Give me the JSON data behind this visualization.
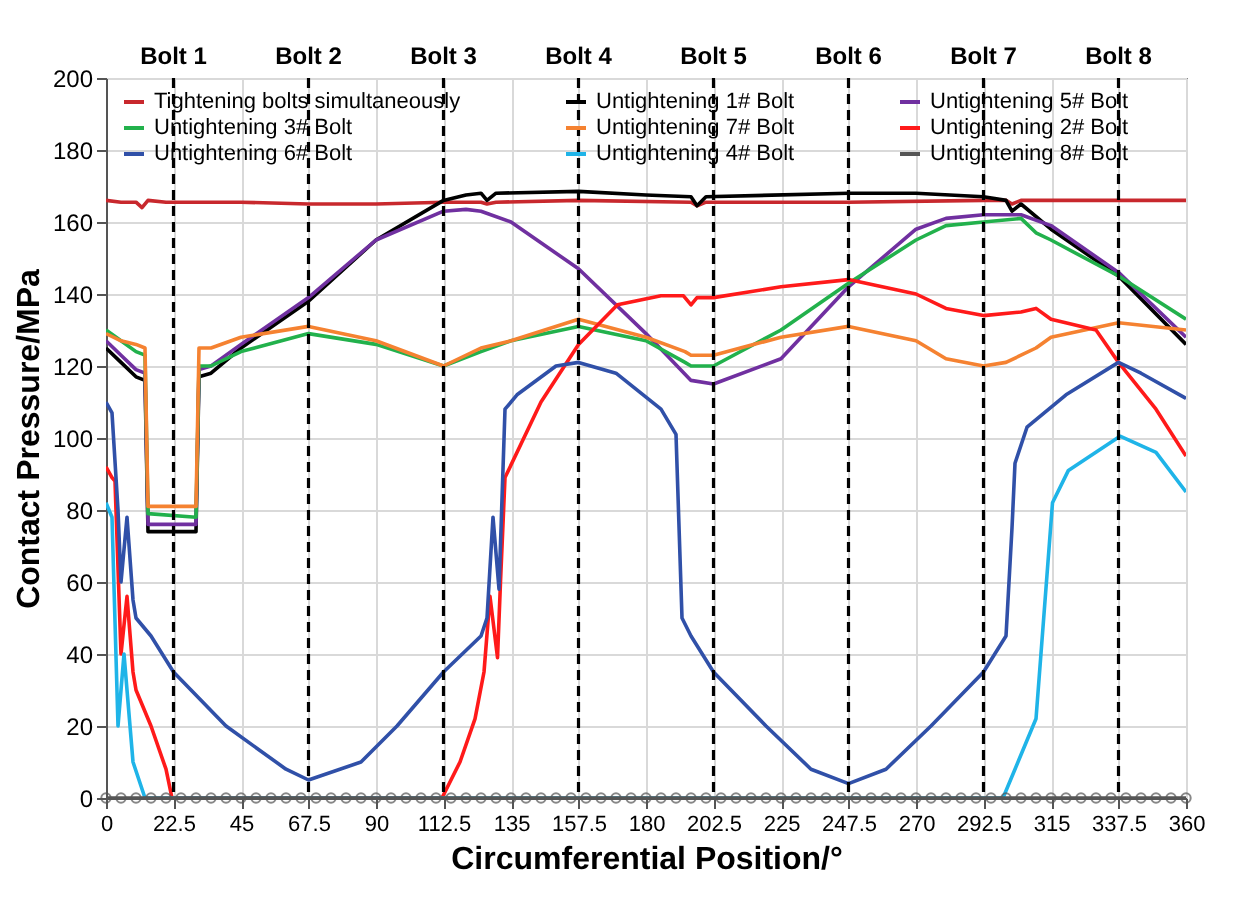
{
  "chart_data": {
    "type": "line",
    "xlabel": "Circumferential Position/°",
    "ylabel": "Contact Pressure/MPa",
    "xlim": [
      0,
      360
    ],
    "xticks": [
      0,
      22.5,
      45,
      67.5,
      90,
      112.5,
      135,
      157.5,
      180,
      202.5,
      225,
      247.5,
      270,
      292.5,
      315,
      337.5,
      360
    ],
    "ylim": [
      0,
      200
    ],
    "yticks": [
      0,
      20,
      40,
      60,
      80,
      100,
      120,
      140,
      160,
      180,
      200
    ],
    "grid": true,
    "legend": "top",
    "line_style": "solid",
    "series": [
      {
        "name": "Tightening bolts simultaneously",
        "color": "#c8282d",
        "x": [
          0,
          5,
          10,
          12,
          14,
          20,
          45,
          67.5,
          90,
          112.5,
          125,
          127,
          130,
          157.5,
          195,
          197,
          200,
          247.5,
          292.5,
          300,
          302,
          305,
          337.5,
          360
        ],
        "values": [
          166,
          165.5,
          165.5,
          164,
          166,
          165.5,
          165.5,
          165,
          165,
          165.5,
          165.5,
          165,
          165.5,
          166,
          165.5,
          164.5,
          165.5,
          165.5,
          166,
          166,
          165,
          166,
          166,
          166
        ]
      },
      {
        "name": "Untightening 1# Bolt",
        "color": "#000000",
        "x": [
          0,
          5,
          10,
          13,
          14,
          30,
          31,
          35,
          45,
          67.5,
          90,
          112.5,
          120,
          125,
          127,
          130,
          157.5,
          180,
          195,
          197,
          200,
          247.5,
          270,
          292.5,
          300,
          302,
          305,
          315,
          337.5,
          360
        ],
        "values": [
          125,
          121,
          117,
          116,
          74,
          74,
          117,
          118,
          125,
          138,
          155,
          166,
          167.5,
          168,
          166,
          168,
          168.5,
          167.5,
          167,
          164.5,
          167,
          168,
          168,
          167,
          166,
          163,
          165,
          158,
          145,
          126
        ]
      },
      {
        "name": "Untightening 5# Bolt",
        "color": "#7030a0",
        "x": [
          0,
          5,
          10,
          13,
          14,
          30,
          31,
          35,
          45,
          67.5,
          90,
          112.5,
          120,
          125,
          135,
          157.5,
          180,
          195,
          202.5,
          225,
          247.5,
          270,
          280,
          292.5,
          305,
          315,
          337.5,
          360
        ],
        "values": [
          127,
          123,
          119,
          118,
          76,
          76,
          119,
          120,
          126,
          139,
          155,
          163,
          163.5,
          163,
          160,
          147,
          129,
          116,
          115,
          122,
          142,
          158,
          161,
          162,
          162,
          159,
          146,
          128
        ]
      },
      {
        "name": "Untightening 3# Bolt",
        "color": "#22b14c",
        "x": [
          0,
          5,
          10,
          13,
          14,
          30,
          31,
          35,
          45,
          67.5,
          90,
          112.5,
          125,
          135,
          157.5,
          180,
          193,
          195,
          202.5,
          225,
          247.5,
          270,
          280,
          292.5,
          305,
          310,
          315,
          337.5,
          360
        ],
        "values": [
          130,
          127,
          124,
          123,
          79,
          78,
          120,
          120,
          124,
          129,
          126,
          120,
          124,
          127,
          131,
          127,
          121,
          120,
          120,
          130,
          143,
          155,
          159,
          160,
          161,
          157,
          155,
          145,
          133
        ]
      },
      {
        "name": "Untightening 7# Bolt",
        "color": "#f58231",
        "x": [
          0,
          5,
          10,
          13,
          14,
          30,
          31,
          35,
          45,
          67.5,
          90,
          112.5,
          125,
          135,
          157.5,
          180,
          193,
          195,
          202.5,
          225,
          247.5,
          270,
          280,
          292.5,
          300,
          310,
          315,
          337.5,
          360
        ],
        "values": [
          129,
          127,
          126,
          125,
          81,
          81,
          125,
          125,
          128,
          131,
          127,
          120,
          125,
          127,
          133,
          128,
          124,
          123,
          123,
          128,
          131,
          127,
          122,
          120,
          121,
          125,
          128,
          132,
          130
        ]
      },
      {
        "name": "Untightening 2# Bolt",
        "color": "#ff1a1a",
        "x": [
          0,
          2,
          3,
          5,
          7,
          9,
          10,
          15,
          20,
          22,
          40,
          67.5,
          90,
          112,
          118,
          123,
          126,
          128,
          130.5,
          131.5,
          133,
          145,
          157.5,
          170.5,
          185,
          192.5,
          195,
          197,
          202.5,
          225,
          247.5,
          270,
          280,
          292.5,
          305,
          310,
          315,
          330,
          337.5,
          350,
          360
        ],
        "values": [
          92,
          89,
          88,
          40,
          56,
          35,
          30,
          20,
          8,
          0,
          0,
          0,
          0,
          0,
          10,
          22,
          35,
          56,
          39,
          60,
          89,
          110,
          126,
          137,
          139.5,
          139.5,
          137,
          139,
          139,
          142,
          144,
          140,
          136,
          134,
          135,
          136,
          133,
          130,
          121,
          108,
          95
        ]
      },
      {
        "name": "Untightening 6# Bolt",
        "color": "#3050a8",
        "x": [
          0,
          2,
          4,
          5,
          7,
          9,
          10,
          15,
          22.5,
          40,
          60,
          67.5,
          85,
          97,
          112.5,
          125,
          127,
          129,
          131,
          133,
          137,
          150,
          157.5,
          170,
          185,
          190,
          192,
          195,
          202.5,
          220,
          235,
          247.5,
          260,
          275,
          292.5,
          300,
          302,
          303,
          307,
          320,
          337.5,
          345,
          360
        ],
        "values": [
          110,
          107,
          80,
          60,
          78,
          55,
          50,
          45,
          35,
          20,
          8,
          5,
          10,
          20,
          35,
          45,
          50,
          78,
          58,
          108,
          112,
          120,
          121,
          118,
          108,
          101,
          50,
          45,
          35,
          20,
          8,
          4,
          8,
          20,
          35,
          45,
          75,
          93,
          103,
          112,
          121,
          118,
          111
        ]
      },
      {
        "name": "Untightening 4# Bolt",
        "color": "#1fb4e8",
        "x": [
          0,
          2,
          4,
          6,
          9,
          13,
          45,
          90,
          135,
          180,
          225,
          270,
          299,
          310,
          315.5,
          320.8,
          338,
          350,
          360
        ],
        "values": [
          82,
          78,
          20,
          40,
          10,
          0,
          0,
          0,
          0,
          0,
          0,
          0,
          0,
          22,
          82,
          91,
          100.5,
          96,
          85
        ]
      },
      {
        "name": "Untightening 8# Bolt",
        "color": "#555555",
        "marker": "circle",
        "x": [
          0,
          5,
          10,
          15,
          20,
          25,
          30,
          35,
          40,
          45,
          50,
          55,
          60,
          65,
          70,
          75,
          80,
          85,
          90,
          95,
          100,
          105,
          110,
          115,
          120,
          125,
          130,
          135,
          140,
          145,
          150,
          155,
          160,
          165,
          170,
          175,
          180,
          185,
          190,
          195,
          200,
          205,
          210,
          215,
          220,
          225,
          230,
          235,
          240,
          245,
          250,
          255,
          260,
          265,
          270,
          275,
          280,
          285,
          290,
          295,
          300,
          305,
          310,
          315,
          320,
          325,
          330,
          335,
          340,
          345,
          350,
          355,
          360
        ],
        "values": [
          0,
          0,
          0,
          0,
          0,
          0,
          0,
          0,
          0,
          0,
          0,
          0,
          0,
          0,
          0,
          0,
          0,
          0,
          0,
          0,
          0,
          0,
          0,
          0,
          0,
          0,
          0,
          0,
          0,
          0,
          0,
          0,
          0,
          0,
          0,
          0,
          0,
          0,
          0,
          0,
          0,
          0,
          0,
          0,
          0,
          0,
          0,
          0,
          0,
          0,
          0,
          0,
          0,
          0,
          0,
          0,
          0,
          0,
          0,
          0,
          0,
          0,
          0,
          0,
          0,
          0,
          0,
          0,
          0,
          0,
          0,
          0,
          0
        ]
      }
    ],
    "ref_lines": [
      {
        "axis": "x",
        "value": 22.5,
        "label": "Bolt 1",
        "color": "#000000",
        "line_style": "dashed"
      },
      {
        "axis": "x",
        "value": 67.5,
        "label": "Bolt 2",
        "color": "#000000",
        "line_style": "dashed"
      },
      {
        "axis": "x",
        "value": 112.5,
        "label": "Bolt 3",
        "color": "#000000",
        "line_style": "dashed"
      },
      {
        "axis": "x",
        "value": 157.5,
        "label": "Bolt 4",
        "color": "#000000",
        "line_style": "dashed"
      },
      {
        "axis": "x",
        "value": 202.5,
        "label": "Bolt 5",
        "color": "#000000",
        "line_style": "dashed"
      },
      {
        "axis": "x",
        "value": 247.5,
        "label": "Bolt 6",
        "color": "#000000",
        "line_style": "dashed"
      },
      {
        "axis": "x",
        "value": 292.5,
        "label": "Bolt 7",
        "color": "#000000",
        "line_style": "dashed"
      },
      {
        "axis": "x",
        "value": 337.5,
        "label": "Bolt 8",
        "color": "#000000",
        "line_style": "dashed"
      }
    ]
  }
}
